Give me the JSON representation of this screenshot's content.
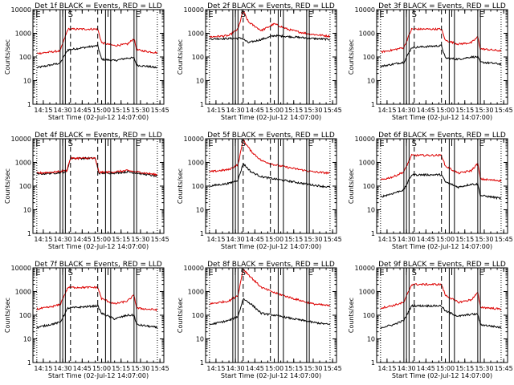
{
  "chart_data": {
    "type": "line",
    "x_ticks": [
      "14:15",
      "14:30",
      "14:45",
      "15:00",
      "15:15",
      "15:30",
      "15:45"
    ],
    "y_ticks": [
      "1",
      "10",
      "100",
      "1000",
      "10000"
    ],
    "xlim": [
      "14:07",
      "15:48"
    ],
    "ylim": [
      1,
      10000
    ],
    "log_y": true,
    "xlabel": "Start Time (02-Jul-12 14:07:00)",
    "ylabel": "Counts/sec",
    "panels": [
      {
        "title": "Det 1f BLACK = Events, RED = LLD",
        "markers": {
          "solid": [
            "14:28",
            "14:30",
            "14:32",
            "15:03",
            "15:07",
            "15:25",
            "15:27"
          ],
          "dashed": [
            "14:36",
            "14:57"
          ],
          "dotted": [
            "14:10",
            "15:43"
          ]
        },
        "letters": [
          {
            "t": "E",
            "x": "14:09"
          },
          {
            "t": "I",
            "x": "14:29"
          },
          {
            "t": "S",
            "x": "14:34"
          },
          {
            "t": "I",
            "x": "15:04"
          },
          {
            "t": "E",
            "x": "15:26"
          }
        ],
        "series": [
          {
            "name": "BLACK = Events",
            "color": "#000000",
            "x": [
              "14:10",
              "14:20",
              "14:28",
              "14:34",
              "14:57",
              "15:00",
              "15:10",
              "15:20",
              "15:25",
              "15:27",
              "15:35",
              "15:43"
            ],
            "y": [
              35,
              45,
              55,
              200,
              300,
              80,
              70,
              90,
              90,
              45,
              40,
              35
            ]
          },
          {
            "name": "RED = LLD",
            "color": "#dd0000",
            "x": [
              "14:10",
              "14:20",
              "14:28",
              "14:34",
              "14:57",
              "15:00",
              "15:10",
              "15:20",
              "15:25",
              "15:27",
              "15:35",
              "15:43"
            ],
            "y": [
              140,
              160,
              180,
              1500,
              1500,
              400,
              300,
              350,
              600,
              200,
              170,
              150
            ]
          }
        ]
      },
      {
        "title": "Det 2f BLACK = Events, RED = LLD",
        "markers": {
          "solid": [
            "14:28",
            "14:30",
            "14:32",
            "15:03",
            "15:07",
            "15:25",
            "15:27"
          ],
          "dashed": [
            "14:36",
            "14:57"
          ],
          "dotted": [
            "14:10",
            "15:43"
          ]
        },
        "letters": [
          {
            "t": "E",
            "x": "14:09"
          },
          {
            "t": "I",
            "x": "14:29"
          },
          {
            "t": "S",
            "x": "14:34"
          },
          {
            "t": "I",
            "x": "15:04"
          },
          {
            "t": "E",
            "x": "15:26"
          }
        ],
        "series": [
          {
            "name": "BLACK = Events",
            "color": "#000000",
            "x": [
              "14:10",
              "14:25",
              "14:35",
              "14:40",
              "14:50",
              "15:00",
              "15:15",
              "15:30",
              "15:43"
            ],
            "y": [
              580,
              600,
              620,
              400,
              550,
              800,
              700,
              600,
              550
            ]
          },
          {
            "name": "RED = LLD",
            "color": "#dd0000",
            "x": [
              "14:10",
              "14:25",
              "14:32",
              "14:36",
              "14:40",
              "14:50",
              "15:00",
              "15:10",
              "15:20",
              "15:30",
              "15:43"
            ],
            "y": [
              700,
              800,
              1500,
              9000,
              3000,
              1300,
              2500,
              1500,
              1100,
              900,
              750
            ]
          }
        ]
      },
      {
        "title": "Det 3f BLACK = Events, RED = LLD",
        "markers": {
          "solid": [
            "14:28",
            "14:30",
            "14:32",
            "15:03",
            "15:07",
            "15:25",
            "15:27"
          ],
          "dashed": [
            "14:36",
            "14:57"
          ],
          "dotted": [
            "14:10",
            "15:43"
          ]
        },
        "letters": [
          {
            "t": "E",
            "x": "14:09"
          },
          {
            "t": "I",
            "x": "14:29"
          },
          {
            "t": "S",
            "x": "14:34"
          },
          {
            "t": "I",
            "x": "15:04"
          },
          {
            "t": "E",
            "x": "15:26"
          }
        ],
        "series": [
          {
            "name": "BLACK = Events",
            "color": "#000000",
            "x": [
              "14:10",
              "14:20",
              "14:28",
              "14:34",
              "14:57",
              "15:00",
              "15:10",
              "15:20",
              "15:25",
              "15:27",
              "15:35",
              "15:43"
            ],
            "y": [
              40,
              50,
              60,
              250,
              300,
              90,
              80,
              100,
              100,
              60,
              55,
              50
            ]
          },
          {
            "name": "RED = LLD",
            "color": "#dd0000",
            "x": [
              "14:10",
              "14:20",
              "14:28",
              "14:34",
              "14:57",
              "15:00",
              "15:10",
              "15:20",
              "15:25",
              "15:27",
              "15:35",
              "15:43"
            ],
            "y": [
              160,
              200,
              250,
              1500,
              1500,
              500,
              350,
              400,
              700,
              220,
              200,
              180
            ]
          }
        ]
      },
      {
        "title": "Det 4f BLACK = Events, RED = LLD",
        "markers": {
          "solid": [
            "14:28",
            "14:30",
            "14:32",
            "15:03",
            "15:07",
            "15:25",
            "15:27"
          ],
          "dashed": [
            "14:36",
            "14:57"
          ],
          "dotted": [
            "14:10",
            "15:43"
          ]
        },
        "letters": [
          {
            "t": "E",
            "x": "14:09"
          },
          {
            "t": "I",
            "x": "14:29"
          },
          {
            "t": "S",
            "x": "14:34"
          },
          {
            "t": "I",
            "x": "15:04"
          },
          {
            "t": "E",
            "x": "15:26"
          }
        ],
        "series": [
          {
            "name": "BLACK = Events",
            "color": "#000000",
            "x": [
              "14:10",
              "14:25",
              "14:33",
              "14:36",
              "14:55",
              "14:58",
              "15:10",
              "15:20",
              "15:30",
              "15:43"
            ],
            "y": [
              320,
              360,
              400,
              1500,
              1500,
              350,
              360,
              400,
              340,
              260
            ]
          },
          {
            "name": "RED = LLD",
            "color": "#dd0000",
            "x": [
              "14:10",
              "14:25",
              "14:33",
              "14:36",
              "14:55",
              "14:58",
              "15:10",
              "15:20",
              "15:30",
              "15:43"
            ],
            "y": [
              350,
              400,
              450,
              1500,
              1500,
              380,
              400,
              450,
              380,
              300
            ]
          }
        ]
      },
      {
        "title": "Det 5f BLACK = Events, RED = LLD",
        "markers": {
          "solid": [
            "14:28",
            "14:30",
            "14:32",
            "15:03",
            "15:07",
            "15:25",
            "15:27"
          ],
          "dashed": [
            "14:36",
            "14:57"
          ],
          "dotted": [
            "14:10",
            "15:43"
          ]
        },
        "letters": [
          {
            "t": "E",
            "x": "14:09"
          },
          {
            "t": "I",
            "x": "14:29"
          },
          {
            "t": "S",
            "x": "14:34"
          },
          {
            "t": "I",
            "x": "15:04"
          },
          {
            "t": "E",
            "x": "15:26"
          }
        ],
        "series": [
          {
            "name": "BLACK = Events",
            "color": "#000000",
            "x": [
              "14:10",
              "14:25",
              "14:32",
              "14:36",
              "14:42",
              "14:50",
              "15:00",
              "15:15",
              "15:30",
              "15:43"
            ],
            "y": [
              100,
              130,
              180,
              900,
              400,
              250,
              200,
              150,
              110,
              90
            ]
          },
          {
            "name": "RED = LLD",
            "color": "#dd0000",
            "x": [
              "14:10",
              "14:25",
              "14:32",
              "14:36",
              "14:42",
              "14:50",
              "15:00",
              "15:15",
              "15:30",
              "15:43"
            ],
            "y": [
              400,
              500,
              800,
              9000,
              3000,
              1200,
              800,
              550,
              400,
              350
            ]
          }
        ]
      },
      {
        "title": "Det 6f BLACK = Events, RED = LLD",
        "markers": {
          "solid": [
            "14:28",
            "14:30",
            "14:32",
            "15:03",
            "15:07",
            "15:25",
            "15:27"
          ],
          "dashed": [
            "14:36",
            "14:57"
          ],
          "dotted": [
            "14:10",
            "15:43"
          ]
        },
        "letters": [
          {
            "t": "E",
            "x": "14:09"
          },
          {
            "t": "I",
            "x": "14:29"
          },
          {
            "t": "S",
            "x": "14:34"
          },
          {
            "t": "I",
            "x": "15:04"
          },
          {
            "t": "E",
            "x": "15:26"
          }
        ],
        "series": [
          {
            "name": "BLACK = Events",
            "color": "#000000",
            "x": [
              "14:10",
              "14:20",
              "14:28",
              "14:34",
              "14:57",
              "15:00",
              "15:10",
              "15:20",
              "15:25",
              "15:27",
              "15:35",
              "15:43"
            ],
            "y": [
              35,
              50,
              70,
              300,
              300,
              150,
              90,
              120,
              120,
              40,
              35,
              30
            ]
          },
          {
            "name": "RED = LLD",
            "color": "#dd0000",
            "x": [
              "14:10",
              "14:20",
              "14:28",
              "14:34",
              "14:57",
              "15:00",
              "15:10",
              "15:20",
              "15:25",
              "15:27",
              "15:35",
              "15:43"
            ],
            "y": [
              180,
              250,
              400,
              2000,
              2000,
              700,
              350,
              450,
              900,
              200,
              180,
              170
            ]
          }
        ]
      },
      {
        "title": "Det 7f BLACK = Events, RED = LLD",
        "markers": {
          "solid": [
            "14:28",
            "14:30",
            "14:32",
            "15:03",
            "15:07",
            "15:25",
            "15:27"
          ],
          "dashed": [
            "14:36",
            "14:57"
          ],
          "dotted": [
            "14:10",
            "15:43"
          ]
        },
        "letters": [
          {
            "t": "E",
            "x": "14:09"
          },
          {
            "t": "I",
            "x": "14:29"
          },
          {
            "t": "S",
            "x": "14:34"
          },
          {
            "t": "I",
            "x": "15:04"
          },
          {
            "t": "E",
            "x": "15:26"
          }
        ],
        "series": [
          {
            "name": "BLACK = Events",
            "color": "#000000",
            "x": [
              "14:10",
              "14:20",
              "14:28",
              "14:34",
              "14:57",
              "15:00",
              "15:10",
              "15:20",
              "15:25",
              "15:27",
              "15:35",
              "15:43"
            ],
            "y": [
              30,
              40,
              50,
              200,
              250,
              120,
              70,
              100,
              100,
              40,
              35,
              30
            ]
          },
          {
            "name": "RED = LLD",
            "color": "#dd0000",
            "x": [
              "14:10",
              "14:20",
              "14:28",
              "14:34",
              "14:57",
              "15:00",
              "15:10",
              "15:20",
              "15:25",
              "15:27",
              "15:35",
              "15:43"
            ],
            "y": [
              180,
              220,
              280,
              1500,
              1500,
              500,
              300,
              400,
              700,
              200,
              180,
              170
            ]
          }
        ]
      },
      {
        "title": "Det 8f BLACK = Events, RED = LLD",
        "markers": {
          "solid": [
            "14:28",
            "14:30",
            "14:32",
            "15:03",
            "15:07",
            "15:25",
            "15:27"
          ],
          "dashed": [
            "14:36",
            "14:57"
          ],
          "dotted": [
            "14:10",
            "15:43"
          ]
        },
        "letters": [
          {
            "t": "E",
            "x": "14:09"
          },
          {
            "t": "I",
            "x": "14:29"
          },
          {
            "t": "S",
            "x": "14:34"
          },
          {
            "t": "I",
            "x": "15:04"
          },
          {
            "t": "E",
            "x": "15:26"
          }
        ],
        "series": [
          {
            "name": "BLACK = Events",
            "color": "#000000",
            "x": [
              "14:10",
              "14:25",
              "14:32",
              "14:36",
              "14:42",
              "14:50",
              "15:00",
              "15:15",
              "15:30",
              "15:43"
            ],
            "y": [
              40,
              60,
              90,
              500,
              300,
              120,
              100,
              70,
              50,
              40
            ]
          },
          {
            "name": "RED = LLD",
            "color": "#dd0000",
            "x": [
              "14:10",
              "14:25",
              "14:32",
              "14:36",
              "14:42",
              "14:50",
              "15:00",
              "15:15",
              "15:30",
              "15:43"
            ],
            "y": [
              300,
              400,
              700,
              9000,
              4000,
              1500,
              900,
              500,
              300,
              250
            ]
          }
        ]
      },
      {
        "title": "Det 9f BLACK = Events, RED = LLD",
        "markers": {
          "solid": [
            "14:28",
            "14:30",
            "14:32",
            "15:03",
            "15:07",
            "15:25",
            "15:27"
          ],
          "dashed": [
            "14:36",
            "14:57"
          ],
          "dotted": [
            "14:10",
            "15:43"
          ]
        },
        "letters": [
          {
            "t": "E",
            "x": "14:09"
          },
          {
            "t": "I",
            "x": "14:29"
          },
          {
            "t": "S",
            "x": "14:34"
          },
          {
            "t": "I",
            "x": "15:04"
          },
          {
            "t": "E",
            "x": "15:26"
          }
        ],
        "series": [
          {
            "name": "BLACK = Events",
            "color": "#000000",
            "x": [
              "14:10",
              "14:20",
              "14:28",
              "14:34",
              "14:57",
              "15:00",
              "15:10",
              "15:20",
              "15:25",
              "15:27",
              "15:35",
              "15:43"
            ],
            "y": [
              30,
              40,
              60,
              250,
              250,
              150,
              90,
              110,
              110,
              40,
              35,
              30
            ]
          },
          {
            "name": "RED = LLD",
            "color": "#dd0000",
            "x": [
              "14:10",
              "14:20",
              "14:28",
              "14:34",
              "14:57",
              "15:00",
              "15:10",
              "15:20",
              "15:25",
              "15:27",
              "15:35",
              "15:43"
            ],
            "y": [
              200,
              260,
              350,
              2000,
              2000,
              700,
              350,
              450,
              900,
              220,
              200,
              180
            ]
          }
        ]
      }
    ]
  }
}
